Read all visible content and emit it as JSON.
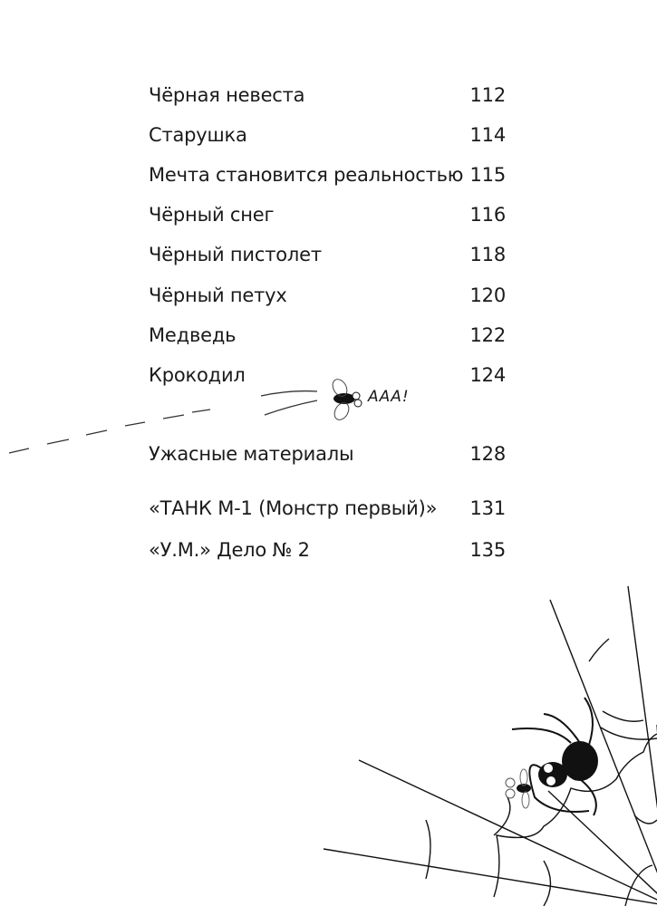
{
  "toc": [
    {
      "title": "Чёрная невеста",
      "page": "112"
    },
    {
      "title": "Старушка",
      "page": "114"
    },
    {
      "title": "Мечта становится реальностью",
      "page": "115"
    },
    {
      "title": "Чёрный снег",
      "page": "116"
    },
    {
      "title": "Чёрный пистолет",
      "page": "118"
    },
    {
      "title": "Чёрный петух",
      "page": "120"
    },
    {
      "title": "Медведь",
      "page": "122"
    },
    {
      "title": "Крокодил",
      "page": "124"
    },
    {
      "title": "Ужасные материалы",
      "page": "128"
    },
    {
      "title": "«ТАНК М-1 (Монстр первый)»",
      "page": "131"
    },
    {
      "title": "«У.М.» Дело № 2",
      "page": "135"
    }
  ],
  "illustration": {
    "fly_exclamation": "ААА!"
  }
}
